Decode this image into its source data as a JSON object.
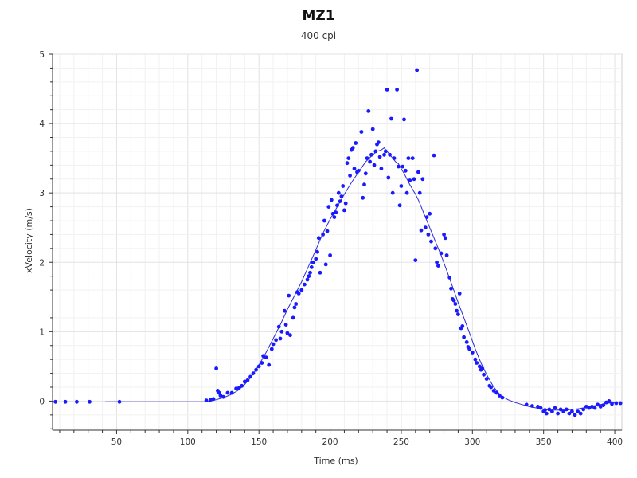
{
  "chart_data": {
    "type": "scatter",
    "title": "MZ1",
    "subtitle": "400 cpi",
    "xlabel": "Time (ms)",
    "ylabel": "xVelocity (m/s)",
    "xlim": [
      5,
      405
    ],
    "ylim": [
      -0.42,
      5.0
    ],
    "x_ticks": [
      50,
      100,
      150,
      200,
      250,
      300,
      350,
      400
    ],
    "y_ticks": [
      0,
      1,
      2,
      3,
      4,
      5
    ],
    "grid": true,
    "legend": "none",
    "colors": {
      "points": "#1a1aff",
      "line": "#2b2bd6",
      "grid": "#e8e8e8",
      "axis": "#333333"
    },
    "series": [
      {
        "type": "scatter",
        "points": [
          [
            7,
            -0.01
          ],
          [
            14,
            -0.01
          ],
          [
            22,
            -0.01
          ],
          [
            31,
            -0.01
          ],
          [
            52,
            -0.01
          ],
          [
            113,
            0.01
          ],
          [
            116,
            0.02
          ],
          [
            118,
            0.03
          ],
          [
            120,
            0.47
          ],
          [
            121,
            0.15
          ],
          [
            122,
            0.12
          ],
          [
            123,
            0.08
          ],
          [
            125,
            0.06
          ],
          [
            128,
            0.12
          ],
          [
            131,
            0.12
          ],
          [
            134,
            0.18
          ],
          [
            136,
            0.19
          ],
          [
            138,
            0.22
          ],
          [
            140,
            0.28
          ],
          [
            142,
            0.3
          ],
          [
            144,
            0.35
          ],
          [
            146,
            0.4
          ],
          [
            148,
            0.45
          ],
          [
            150,
            0.5
          ],
          [
            152,
            0.55
          ],
          [
            153,
            0.65
          ],
          [
            155,
            0.63
          ],
          [
            157,
            0.52
          ],
          [
            159,
            0.75
          ],
          [
            160,
            0.82
          ],
          [
            162,
            0.88
          ],
          [
            164,
            1.07
          ],
          [
            165,
            0.9
          ],
          [
            166,
            1.0
          ],
          [
            168,
            1.3
          ],
          [
            169,
            1.1
          ],
          [
            170,
            0.98
          ],
          [
            171,
            1.52
          ],
          [
            172,
            0.95
          ],
          [
            174,
            1.2
          ],
          [
            175,
            1.35
          ],
          [
            176,
            1.4
          ],
          [
            177,
            1.57
          ],
          [
            178,
            1.55
          ],
          [
            180,
            1.6
          ],
          [
            182,
            1.68
          ],
          [
            184,
            1.75
          ],
          [
            185,
            1.8
          ],
          [
            186,
            1.85
          ],
          [
            187,
            1.93
          ],
          [
            188,
            2.0
          ],
          [
            190,
            2.05
          ],
          [
            191,
            2.15
          ],
          [
            192,
            2.35
          ],
          [
            193,
            1.85
          ],
          [
            195,
            2.4
          ],
          [
            196,
            2.6
          ],
          [
            197,
            1.97
          ],
          [
            198,
            2.45
          ],
          [
            199,
            2.8
          ],
          [
            200,
            2.1
          ],
          [
            201,
            2.9
          ],
          [
            202,
            2.7
          ],
          [
            203,
            2.65
          ],
          [
            204,
            2.72
          ],
          [
            205,
            2.82
          ],
          [
            206,
            3.0
          ],
          [
            207,
            2.88
          ],
          [
            208,
            2.95
          ],
          [
            209,
            3.1
          ],
          [
            210,
            2.75
          ],
          [
            211,
            2.85
          ],
          [
            212,
            3.43
          ],
          [
            213,
            3.5
          ],
          [
            214,
            3.25
          ],
          [
            215,
            3.62
          ],
          [
            216,
            3.65
          ],
          [
            217,
            3.35
          ],
          [
            218,
            3.72
          ],
          [
            219,
            3.3
          ],
          [
            220,
            3.32
          ],
          [
            222,
            3.88
          ],
          [
            223,
            2.93
          ],
          [
            224,
            3.12
          ],
          [
            225,
            3.28
          ],
          [
            226,
            3.5
          ],
          [
            227,
            4.18
          ],
          [
            228,
            3.45
          ],
          [
            229,
            3.55
          ],
          [
            230,
            3.92
          ],
          [
            231,
            3.4
          ],
          [
            232,
            3.6
          ],
          [
            233,
            3.7
          ],
          [
            234,
            3.73
          ],
          [
            235,
            3.52
          ],
          [
            236,
            3.35
          ],
          [
            238,
            3.55
          ],
          [
            239,
            3.6
          ],
          [
            240,
            4.49
          ],
          [
            241,
            3.22
          ],
          [
            242,
            3.55
          ],
          [
            243,
            4.07
          ],
          [
            244,
            3.0
          ],
          [
            245,
            3.5
          ],
          [
            247,
            4.49
          ],
          [
            248,
            3.38
          ],
          [
            249,
            2.82
          ],
          [
            250,
            3.1
          ],
          [
            251,
            3.38
          ],
          [
            252,
            4.06
          ],
          [
            253,
            3.32
          ],
          [
            254,
            3.0
          ],
          [
            255,
            3.5
          ],
          [
            256,
            3.18
          ],
          [
            258,
            3.5
          ],
          [
            259,
            3.2
          ],
          [
            260,
            2.03
          ],
          [
            261,
            4.77
          ],
          [
            262,
            3.3
          ],
          [
            263,
            3.0
          ],
          [
            264,
            2.46
          ],
          [
            265,
            3.2
          ],
          [
            267,
            2.5
          ],
          [
            268,
            2.65
          ],
          [
            269,
            2.4
          ],
          [
            270,
            2.7
          ],
          [
            271,
            2.3
          ],
          [
            273,
            3.54
          ],
          [
            274,
            2.2
          ],
          [
            275,
            2.0
          ],
          [
            276,
            1.95
          ],
          [
            278,
            2.13
          ],
          [
            280,
            2.4
          ],
          [
            281,
            2.35
          ],
          [
            282,
            2.1
          ],
          [
            284,
            1.78
          ],
          [
            285,
            1.62
          ],
          [
            286,
            1.47
          ],
          [
            287,
            1.45
          ],
          [
            288,
            1.4
          ],
          [
            289,
            1.3
          ],
          [
            290,
            1.25
          ],
          [
            291,
            1.55
          ],
          [
            292,
            1.05
          ],
          [
            293,
            1.08
          ],
          [
            294,
            0.92
          ],
          [
            296,
            0.85
          ],
          [
            297,
            0.78
          ],
          [
            298,
            0.75
          ],
          [
            300,
            0.7
          ],
          [
            302,
            0.6
          ],
          [
            303,
            0.55
          ],
          [
            305,
            0.5
          ],
          [
            306,
            0.45
          ],
          [
            307,
            0.47
          ],
          [
            308,
            0.38
          ],
          [
            310,
            0.32
          ],
          [
            312,
            0.22
          ],
          [
            313,
            0.2
          ],
          [
            315,
            0.15
          ],
          [
            317,
            0.12
          ],
          [
            319,
            0.08
          ],
          [
            321,
            0.05
          ],
          [
            338,
            -0.05
          ],
          [
            342,
            -0.07
          ],
          [
            346,
            -0.08
          ],
          [
            348,
            -0.1
          ],
          [
            350,
            -0.15
          ],
          [
            351,
            -0.13
          ],
          [
            352,
            -0.18
          ],
          [
            354,
            -0.12
          ],
          [
            356,
            -0.15
          ],
          [
            358,
            -0.1
          ],
          [
            360,
            -0.18
          ],
          [
            362,
            -0.12
          ],
          [
            364,
            -0.15
          ],
          [
            366,
            -0.12
          ],
          [
            368,
            -0.18
          ],
          [
            370,
            -0.15
          ],
          [
            372,
            -0.2
          ],
          [
            374,
            -0.15
          ],
          [
            376,
            -0.18
          ],
          [
            378,
            -0.12
          ],
          [
            380,
            -0.08
          ],
          [
            382,
            -0.1
          ],
          [
            384,
            -0.08
          ],
          [
            386,
            -0.1
          ],
          [
            388,
            -0.05
          ],
          [
            390,
            -0.08
          ],
          [
            392,
            -0.06
          ],
          [
            394,
            -0.02
          ],
          [
            396,
            0.0
          ],
          [
            398,
            -0.04
          ],
          [
            401,
            -0.03
          ],
          [
            404,
            -0.03
          ]
        ]
      },
      {
        "type": "line",
        "points": [
          [
            42,
            -0.01
          ],
          [
            60,
            -0.01
          ],
          [
            80,
            -0.01
          ],
          [
            100,
            -0.01
          ],
          [
            112,
            -0.01
          ],
          [
            116,
            0.0
          ],
          [
            120,
            0.02
          ],
          [
            125,
            0.05
          ],
          [
            130,
            0.09
          ],
          [
            135,
            0.15
          ],
          [
            140,
            0.24
          ],
          [
            145,
            0.36
          ],
          [
            150,
            0.52
          ],
          [
            155,
            0.7
          ],
          [
            160,
            0.9
          ],
          [
            165,
            1.1
          ],
          [
            170,
            1.32
          ],
          [
            175,
            1.52
          ],
          [
            180,
            1.72
          ],
          [
            185,
            1.95
          ],
          [
            190,
            2.18
          ],
          [
            195,
            2.42
          ],
          [
            200,
            2.62
          ],
          [
            205,
            2.8
          ],
          [
            210,
            2.98
          ],
          [
            215,
            3.15
          ],
          [
            220,
            3.3
          ],
          [
            225,
            3.45
          ],
          [
            230,
            3.55
          ],
          [
            233,
            3.6
          ],
          [
            236,
            3.62
          ],
          [
            238,
            3.65
          ],
          [
            240,
            3.6
          ],
          [
            242,
            3.55
          ],
          [
            244,
            3.5
          ],
          [
            246,
            3.45
          ],
          [
            248,
            3.42
          ],
          [
            250,
            3.35
          ],
          [
            252,
            3.28
          ],
          [
            254,
            3.2
          ],
          [
            256,
            3.12
          ],
          [
            258,
            3.05
          ],
          [
            260,
            2.98
          ],
          [
            262,
            2.9
          ],
          [
            264,
            2.8
          ],
          [
            266,
            2.7
          ],
          [
            268,
            2.6
          ],
          [
            270,
            2.5
          ],
          [
            274,
            2.3
          ],
          [
            278,
            2.1
          ],
          [
            282,
            1.88
          ],
          [
            286,
            1.65
          ],
          [
            290,
            1.42
          ],
          [
            294,
            1.2
          ],
          [
            298,
            0.98
          ],
          [
            302,
            0.75
          ],
          [
            306,
            0.55
          ],
          [
            310,
            0.38
          ],
          [
            315,
            0.2
          ],
          [
            320,
            0.08
          ],
          [
            325,
            0.02
          ],
          [
            330,
            -0.02
          ],
          [
            335,
            -0.05
          ],
          [
            340,
            -0.08
          ],
          [
            345,
            -0.1
          ],
          [
            350,
            -0.12
          ],
          [
            355,
            -0.13
          ],
          [
            360,
            -0.13
          ],
          [
            365,
            -0.13
          ],
          [
            370,
            -0.12
          ],
          [
            375,
            -0.11
          ],
          [
            380,
            -0.09
          ],
          [
            385,
            -0.07
          ],
          [
            390,
            -0.05
          ],
          [
            395,
            -0.03
          ],
          [
            400,
            -0.02
          ]
        ]
      }
    ]
  }
}
